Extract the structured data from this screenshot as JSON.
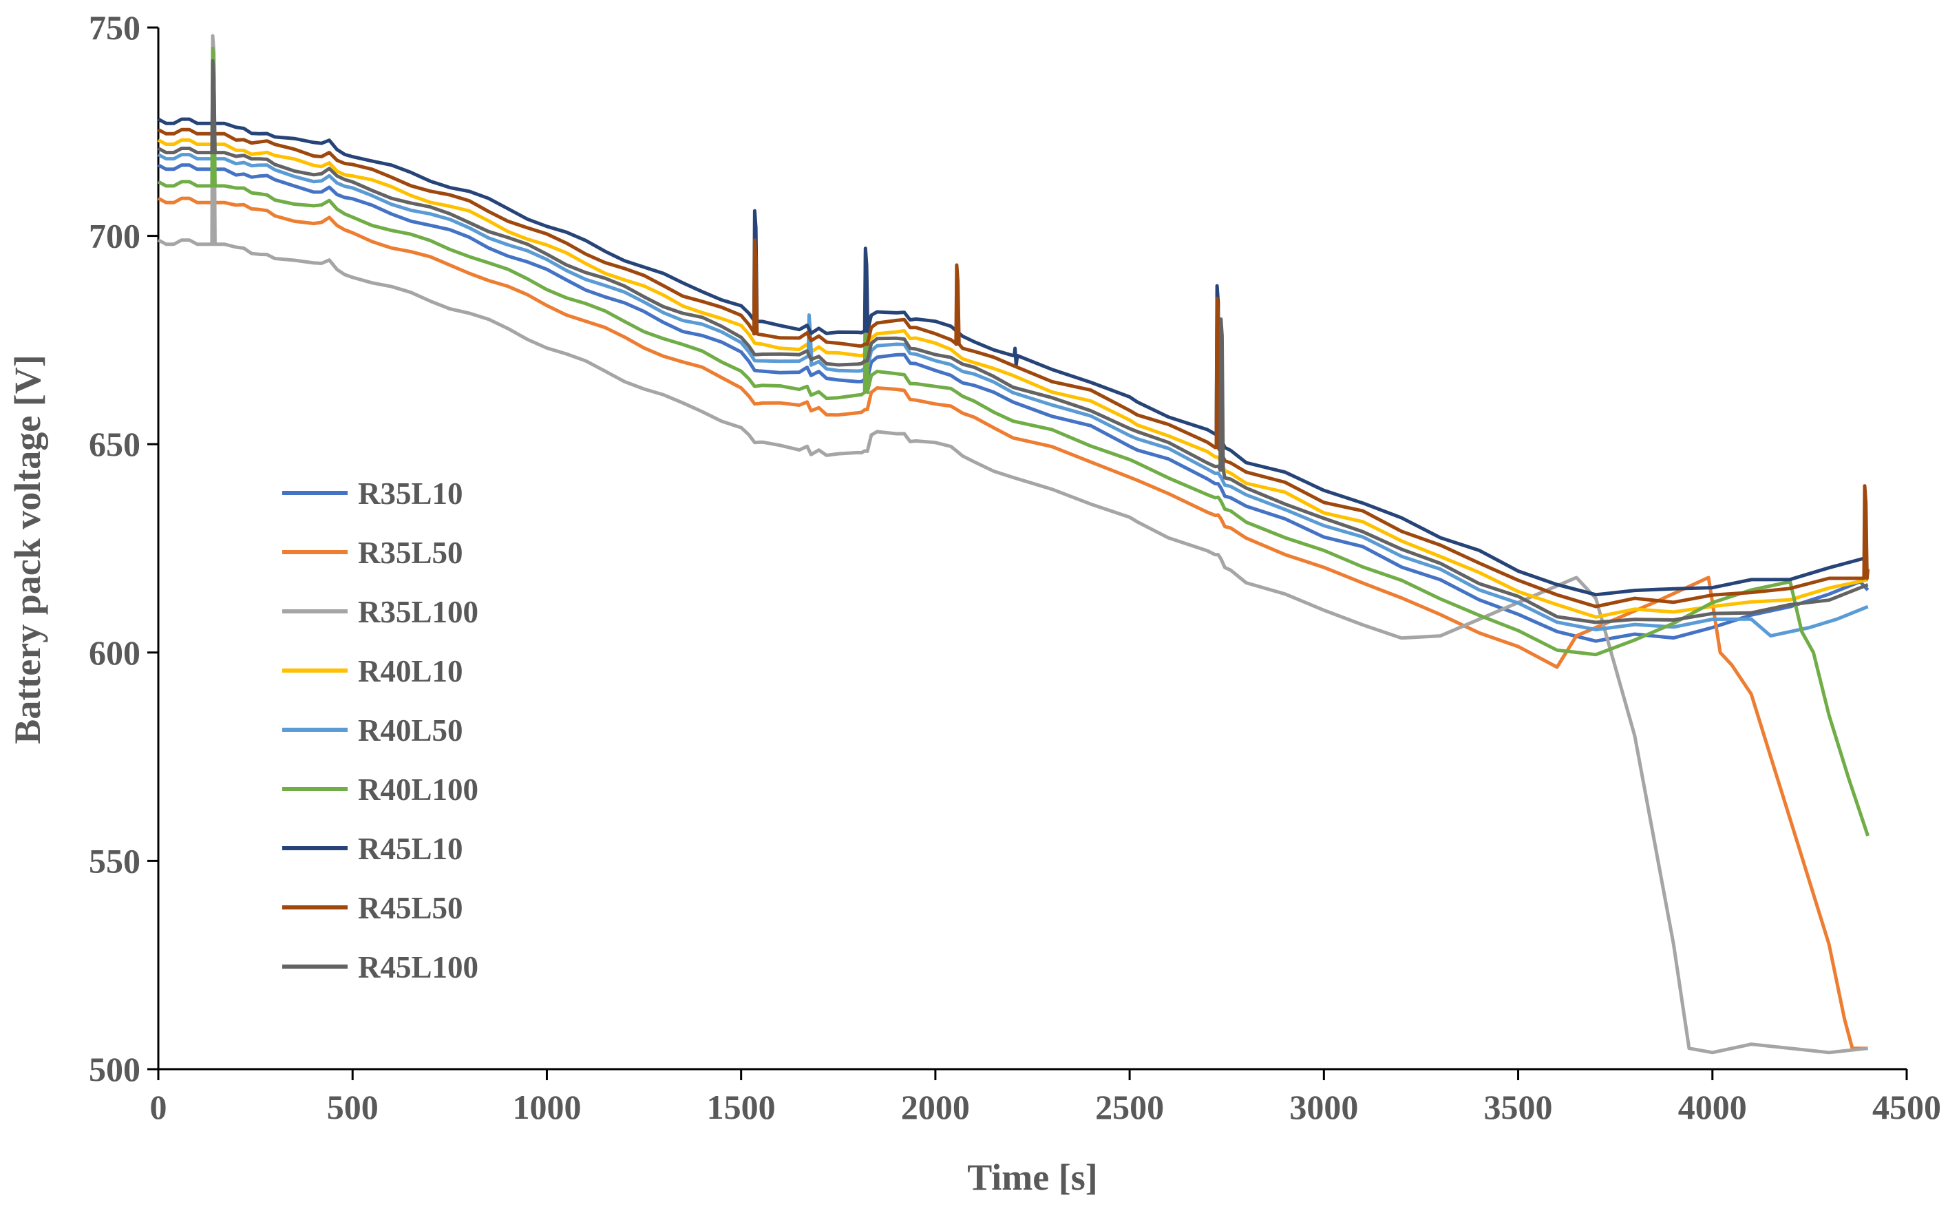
{
  "chart_data": {
    "type": "line",
    "title": "",
    "xlabel": "Time [s]",
    "ylabel": "Battery pack voltage [V]",
    "xlim": [
      0,
      4500
    ],
    "ylim": [
      500,
      750
    ],
    "xticks": [
      0,
      500,
      1000,
      1500,
      2000,
      2500,
      3000,
      3500,
      4000,
      4500
    ],
    "yticks": [
      500,
      550,
      600,
      650,
      700,
      750
    ],
    "xtick_labels": [
      "0",
      "500",
      "1000",
      "1500",
      "2000",
      "2500",
      "3000",
      "3500",
      "4000",
      "4500"
    ],
    "ytick_labels": [
      "500",
      "550",
      "600",
      "650",
      "700",
      "750"
    ],
    "grid": false,
    "legend_position": "center-left",
    "base_profile": {
      "description": "shared drive-cycle shape (offset 0 = R35L10 level)",
      "x": [
        0,
        20,
        40,
        60,
        80,
        100,
        120,
        135,
        138,
        142,
        146,
        150,
        170,
        200,
        220,
        240,
        260,
        280,
        300,
        350,
        400,
        420,
        440,
        460,
        480,
        500,
        550,
        600,
        650,
        700,
        750,
        800,
        850,
        900,
        950,
        1000,
        1050,
        1100,
        1150,
        1200,
        1250,
        1300,
        1350,
        1400,
        1450,
        1500,
        1520,
        1535,
        1545,
        1555,
        1600,
        1650,
        1670,
        1680,
        1700,
        1720,
        1750,
        1800,
        1810,
        1818,
        1825,
        1835,
        1850,
        1900,
        1920,
        1935,
        1950,
        2000,
        2040,
        2055,
        2070,
        2100,
        2150,
        2200,
        2300,
        2400,
        2500,
        2520,
        2600,
        2700,
        2720,
        2728,
        2735,
        2745,
        2760,
        2800,
        2900,
        3000,
        3100,
        3200,
        3300,
        3400,
        3500,
        3600,
        3700,
        3800,
        3900,
        4000,
        4100,
        4200,
        4300,
        4400
      ],
      "y": [
        717,
        716,
        716,
        717,
        717,
        716,
        716,
        716,
        716,
        716,
        716,
        716,
        716,
        715,
        715,
        714,
        714,
        714,
        713,
        712,
        711,
        711,
        712,
        710,
        709,
        708.5,
        707,
        705.5,
        704,
        702.5,
        701,
        699.5,
        697.5,
        695.5,
        693.5,
        691.5,
        689.5,
        687.5,
        685.5,
        683.5,
        681.5,
        679.5,
        677.5,
        676,
        674,
        672,
        670,
        668,
        668,
        668,
        667.5,
        667,
        668,
        666,
        667,
        665.5,
        665.5,
        665.5,
        665.5,
        666,
        666,
        670,
        671,
        671,
        671,
        669,
        669,
        668,
        667,
        666,
        665,
        664,
        662,
        660,
        657,
        654,
        650,
        649,
        646,
        642,
        641,
        641,
        640,
        638,
        637.5,
        635,
        632,
        628,
        625,
        621,
        617,
        613,
        609,
        605,
        603,
        604,
        604,
        605,
        606,
        607,
        609,
        612
      ]
    },
    "series": [
      {
        "name": "R35L10",
        "color": "#4472C4",
        "offset": 0
      },
      {
        "name": "R35L50",
        "color": "#ED7D31",
        "offset": -8
      },
      {
        "name": "R35L100",
        "color": "#A5A5A5",
        "offset": -18
      },
      {
        "name": "R40L10",
        "color": "#FFC000",
        "offset": 6
      },
      {
        "name": "R40L50",
        "color": "#5B9BD5",
        "offset": 2.5
      },
      {
        "name": "R40L100",
        "color": "#70AD47",
        "offset": -4
      },
      {
        "name": "R45L10",
        "color": "#264478",
        "offset": 11
      },
      {
        "name": "R45L50",
        "color": "#9E480E",
        "offset": 8.5
      },
      {
        "name": "R45L100",
        "color": "#636363",
        "offset": 4
      }
    ],
    "spikes": [
      {
        "series": "R35L100",
        "x": 140,
        "peak": 748
      },
      {
        "series": "R40L100",
        "x": 140,
        "peak": 745
      },
      {
        "series": "R45L100",
        "x": 140,
        "peak": 742
      },
      {
        "series": "R45L10",
        "x": 1535,
        "peak": 706
      },
      {
        "series": "R45L50",
        "x": 1535,
        "peak": 699
      },
      {
        "series": "R40L50",
        "x": 1675,
        "peak": 681
      },
      {
        "series": "R45L10",
        "x": 1820,
        "peak": 697
      },
      {
        "series": "R40L100",
        "x": 1820,
        "peak": 696
      },
      {
        "series": "R45L50",
        "x": 2055,
        "peak": 693
      },
      {
        "series": "R45L10",
        "x": 2205,
        "peak": 673
      },
      {
        "series": "R45L10",
        "x": 2725,
        "peak": 688
      },
      {
        "series": "R45L50",
        "x": 2725,
        "peak": 685
      },
      {
        "series": "R45L100",
        "x": 2735,
        "peak": 680
      },
      {
        "series": "R45L50",
        "x": 4392,
        "peak": 640
      }
    ],
    "recoveries": [
      {
        "series": "R35L100",
        "x": [
          3300,
          3450,
          3650,
          3700,
          3800,
          3900,
          3940,
          4000,
          4100,
          4200,
          4300,
          4400
        ],
        "y": [
          604,
          610,
          618,
          613,
          580,
          530,
          505,
          504,
          506,
          505,
          504,
          505
        ]
      },
      {
        "series": "R35L50",
        "x": [
          3650,
          3750,
          3850,
          3990,
          4020,
          4050,
          4100,
          4150,
          4200,
          4250,
          4300,
          4340,
          4360,
          4400
        ],
        "y": [
          604,
          608,
          612,
          618,
          600,
          597,
          590,
          575,
          560,
          545,
          530,
          512,
          505,
          505
        ]
      },
      {
        "series": "R40L100",
        "x": [
          3800,
          3900,
          4000,
          4100,
          4200,
          4230,
          4260,
          4300,
          4350,
          4400
        ],
        "y": [
          603,
          607,
          612,
          615,
          617,
          605,
          600,
          585,
          570,
          556
        ]
      },
      {
        "series": "R35L10",
        "x": [
          3920,
          4000,
          4100,
          4200,
          4300,
          4380,
          4400
        ],
        "y": [
          604,
          606,
          609,
          611,
          614,
          617,
          615
        ]
      },
      {
        "series": "R40L50",
        "x": [
          4150,
          4250,
          4320,
          4400
        ],
        "y": [
          604,
          606,
          608,
          611
        ]
      }
    ]
  }
}
